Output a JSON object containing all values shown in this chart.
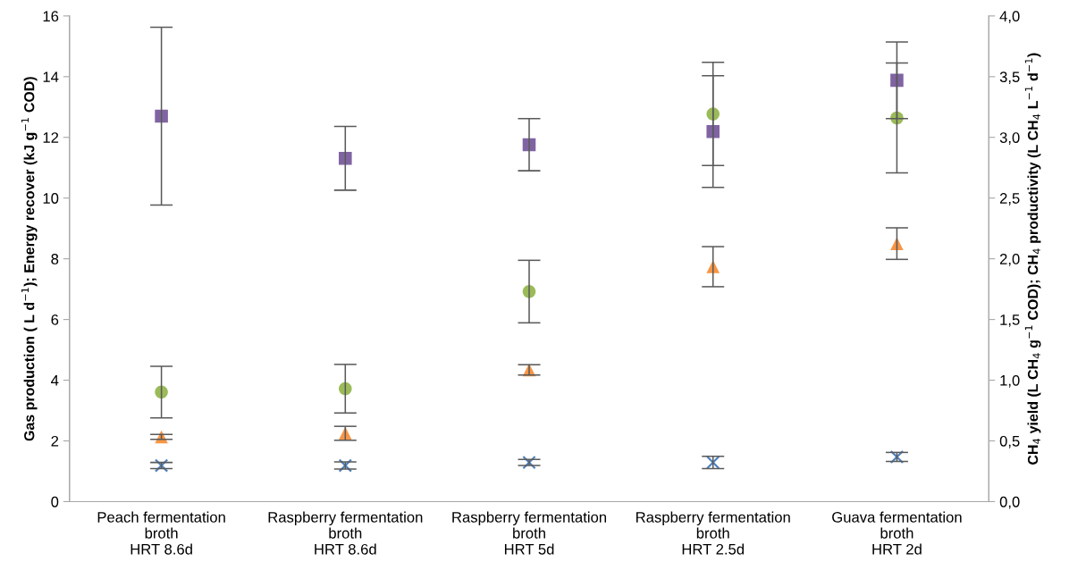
{
  "chart_data": {
    "type": "scatter",
    "categories": [
      "Peach fermentation\nbroth\nHRT 8.6d",
      "Raspberry fermentation\nbroth\nHRT 8.6d",
      "Raspberry fermentation\nbroth\nHRT 5d",
      "Raspberry fermentation\nbroth\nHRT 2.5d",
      "Guava fermentation\nbroth\nHRT 2d"
    ],
    "series": [
      {
        "color": "#8064a2",
        "marker": "square",
        "values": [
          12.7,
          11.31,
          11.76,
          12.19,
          13.88
        ],
        "errors": [
          2.93,
          1.05,
          0.86,
          1.84,
          1.26
        ]
      },
      {
        "color": "#9bbb59",
        "marker": "circle",
        "values": [
          3.61,
          3.72,
          6.92,
          12.77,
          12.64
        ],
        "errors": [
          0.85,
          0.8,
          1.03,
          1.7,
          1.81
        ]
      },
      {
        "color": "#f79646",
        "marker": "triangle",
        "values": [
          2.13,
          2.25,
          4.34,
          7.74,
          8.5
        ],
        "errors": [
          0.08,
          0.23,
          0.17,
          0.66,
          0.52
        ]
      },
      {
        "color": "#4f81bd",
        "marker": "cross",
        "values": [
          1.19,
          1.19,
          1.29,
          1.29,
          1.47
        ],
        "errors": [
          0.1,
          0.12,
          0.1,
          0.2,
          0.15
        ]
      }
    ],
    "ylabel": "Gas production ( L d$^{−1}$); Energy recover (kJ g$^{−1}$ COD)",
    "y2label": "CH$_{4}$ yield (L CH$_{4}$ g$^{−1}$ COD); CH$_{4}$ productivity (L CH$_{4}$ L$^{−1}$ d$^{−1}$)",
    "ylim": [
      0,
      16
    ],
    "yticks": [
      0,
      2,
      4,
      6,
      8,
      10,
      12,
      14,
      16
    ],
    "y2lim": [
      0,
      4
    ],
    "y2ticks": [
      {
        "value": 0,
        "label": "0,0"
      },
      {
        "value": 0.5,
        "label": "0,5"
      },
      {
        "value": 1,
        "label": "1,0"
      },
      {
        "value": 1.5,
        "label": "1,5"
      },
      {
        "value": 2,
        "label": "2,0"
      },
      {
        "value": 2.5,
        "label": "2,5"
      },
      {
        "value": 3,
        "label": "3,0"
      },
      {
        "value": 3.5,
        "label": "3,5"
      },
      {
        "value": 4,
        "label": "4,0"
      }
    ],
    "grid": false,
    "legend": false
  }
}
